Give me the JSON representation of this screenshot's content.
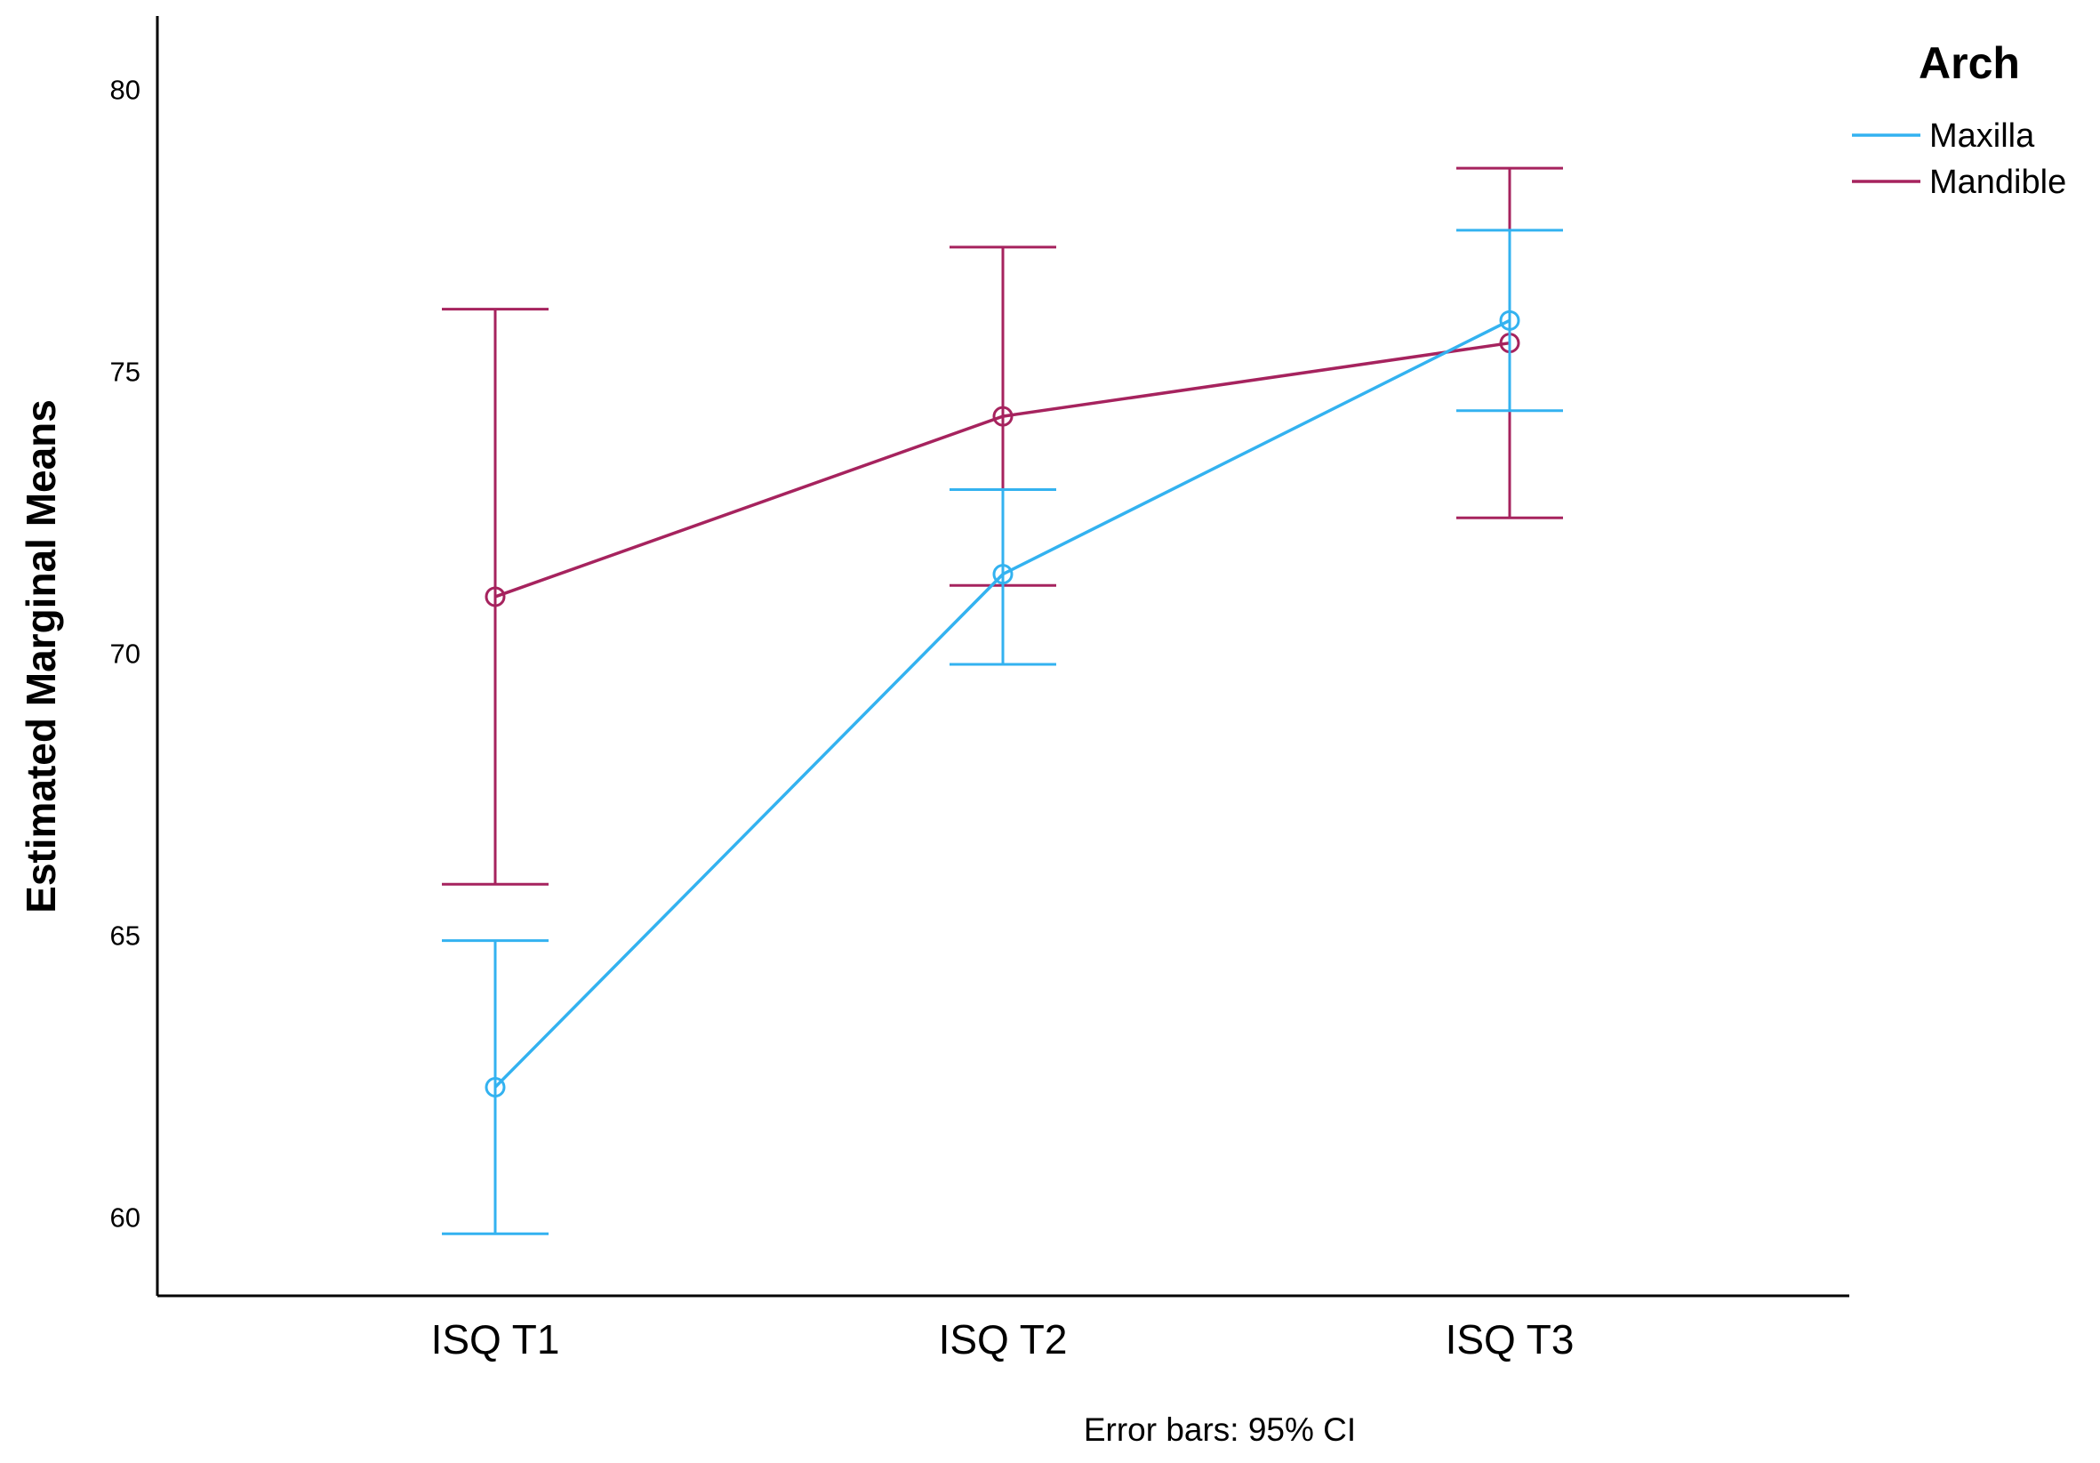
{
  "chart_data": {
    "type": "line",
    "ylabel": "Estimated Marginal Means",
    "xlabel": "",
    "categories": [
      "ISQ T1",
      "ISQ T2",
      "ISQ T3"
    ],
    "ylim": [
      58.6,
      81.3
    ],
    "yticks": [
      60,
      65,
      70,
      75,
      80
    ],
    "grid": false,
    "legend": {
      "title": "Arch",
      "position": "top-right"
    },
    "footnote": "Error bars: 95% CI",
    "series": [
      {
        "name": "Maxilla",
        "color": "#33b2f0",
        "values": [
          62.3,
          71.4,
          75.9
        ],
        "ci_lower": [
          59.7,
          69.8,
          74.3
        ],
        "ci_upper": [
          64.9,
          72.9,
          77.5
        ]
      },
      {
        "name": "Mandible",
        "color": "#a6235e",
        "values": [
          71.0,
          74.2,
          75.5
        ],
        "ci_lower": [
          65.9,
          71.2,
          72.4
        ],
        "ci_upper": [
          76.1,
          77.2,
          78.6
        ]
      }
    ]
  }
}
